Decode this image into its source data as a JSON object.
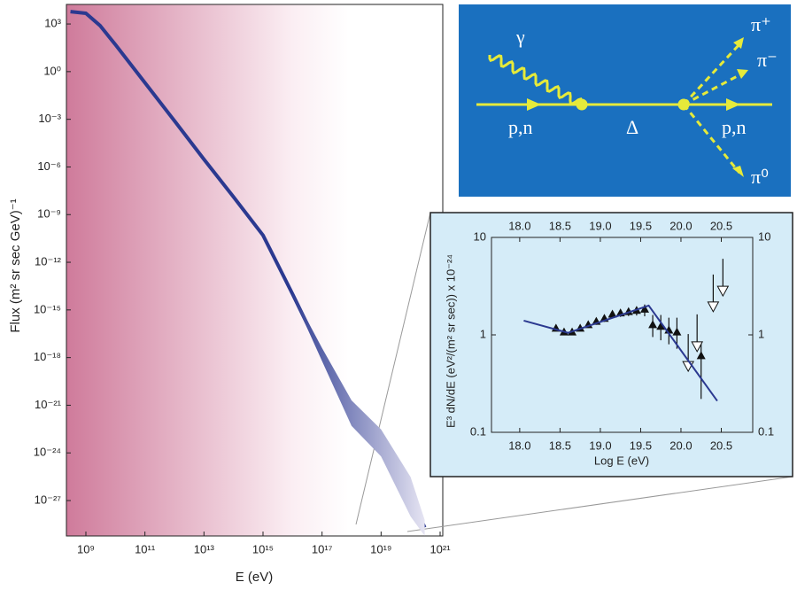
{
  "chart_data": [
    {
      "type": "line",
      "x_label": "E (eV)",
      "y_label": "Flux (m² sr sec GeV)⁻¹",
      "log_x": true,
      "log_y": true,
      "x": [
        300000000.0,
        1000000000.0,
        3000000000.0,
        10000000000.0,
        100000000000.0,
        1000000000000.0,
        10000000000000.0,
        100000000000000.0,
        1000000000000000.0,
        1e+16,
        1e+17,
        1e+18,
        1e+19,
        1e+20,
        3e+20
      ],
      "series": [
        {
          "color": "#2b3990",
          "values": [
            6000,
            4700,
            800,
            50,
            0.2,
            0.0008,
            3e-06,
            1.3e-08,
            5e-11,
            1e-14,
            1.6e-18,
            3e-22,
            4e-24,
            2e-27,
            2e-29
          ],
          "upper": [
            null,
            null,
            null,
            null,
            null,
            null,
            null,
            null,
            null,
            1.2e-14,
            4e-18,
            2e-21,
            3e-23,
            3e-26,
            6e-29
          ],
          "lower": [
            null,
            null,
            null,
            null,
            null,
            null,
            null,
            null,
            null,
            8e-15,
            6e-19,
            5e-23,
            6e-25,
            1e-28,
            6e-30
          ]
        }
      ],
      "xlim": [
        219000000.0,
        1.23e+21
      ],
      "ylim": [
        5.9e-30,
        17000.0
      ],
      "xticks": [
        {
          "value": 1000000000.0,
          "label": "10⁹"
        },
        {
          "value": 100000000000.0,
          "label": "10¹¹"
        },
        {
          "value": 10000000000000.0,
          "label": "10¹³"
        },
        {
          "value": 1000000000000000.0,
          "label": "10¹⁵"
        },
        {
          "value": 1e+17,
          "label": "10¹⁷"
        },
        {
          "value": 1e+19,
          "label": "10¹⁹"
        },
        {
          "value": 1e+21,
          "label": "10²¹"
        }
      ],
      "yticks": [
        {
          "value": 1000.0,
          "label": "10³"
        },
        {
          "value": 1,
          "label": "10⁰"
        },
        {
          "value": 0.001,
          "label": "10⁻³"
        },
        {
          "value": 1e-06,
          "label": "10⁻⁶"
        },
        {
          "value": 1e-09,
          "label": "10⁻⁹"
        },
        {
          "value": 1e-12,
          "label": "10⁻¹²"
        },
        {
          "value": 1e-15,
          "label": "10⁻¹⁵"
        },
        {
          "value": 1e-18,
          "label": "10⁻¹⁸"
        },
        {
          "value": 1e-21,
          "label": "10⁻²¹"
        },
        {
          "value": 1e-24,
          "label": "10⁻²⁴"
        },
        {
          "value": 1e-27,
          "label": "10⁻²⁷"
        }
      ]
    },
    {
      "type": "scatter",
      "x_label": "Log E (eV)",
      "y_label": "E³ dN/dE (eV²/(m² sr sec)) x 10⁻²⁴",
      "log_y": true,
      "xlim": [
        17.65,
        20.89
      ],
      "ylim": [
        0.1,
        10
      ],
      "xticks": [
        {
          "value": 18,
          "label": "18.0"
        },
        18.5,
        {
          "value": 19,
          "label": "19.0"
        },
        19.5,
        {
          "value": 20,
          "label": "20.0"
        },
        20.5
      ],
      "yticks": [
        0.1,
        1,
        10
      ],
      "series": [
        {
          "style": "filled-triangle",
          "color": "#111111",
          "x": [
            18.45,
            18.55,
            18.65,
            18.75,
            18.85,
            18.95,
            19.05,
            19.15,
            19.25,
            19.35,
            19.45,
            19.55,
            19.65,
            19.75,
            19.85,
            19.95,
            20.25
          ],
          "values": [
            1.15,
            1.05,
            1.05,
            1.15,
            1.25,
            1.35,
            1.45,
            1.6,
            1.65,
            1.7,
            1.75,
            1.8,
            1.25,
            1.2,
            1.1,
            1.05,
            0.6
          ],
          "lower": [
            1.1,
            1.0,
            1.0,
            1.1,
            1.18,
            1.27,
            1.36,
            1.5,
            1.53,
            1.56,
            1.58,
            1.55,
            0.95,
            0.88,
            0.8,
            0.72,
            0.22
          ],
          "upper": [
            1.2,
            1.1,
            1.1,
            1.2,
            1.32,
            1.43,
            1.54,
            1.7,
            1.77,
            1.84,
            1.92,
            2.05,
            1.6,
            1.6,
            1.5,
            1.5,
            0.85
          ]
        },
        {
          "style": "upper-limit",
          "color": "#ffffff",
          "x": [
            20.09,
            20.2,
            20.4,
            20.52
          ],
          "values": [
            0.49,
            0.78,
            2.0,
            2.9
          ]
        },
        {
          "style": "line",
          "color": "#2b3990",
          "x": [
            18.05,
            18.6,
            19.6,
            20.45
          ],
          "values": [
            1.4,
            1.05,
            2.0,
            0.21
          ]
        }
      ]
    }
  ],
  "diagram": {
    "labels": [
      "γ",
      "p,n",
      "Δ",
      "p,n",
      "π⁺",
      "π⁻",
      "π⁰"
    ]
  }
}
